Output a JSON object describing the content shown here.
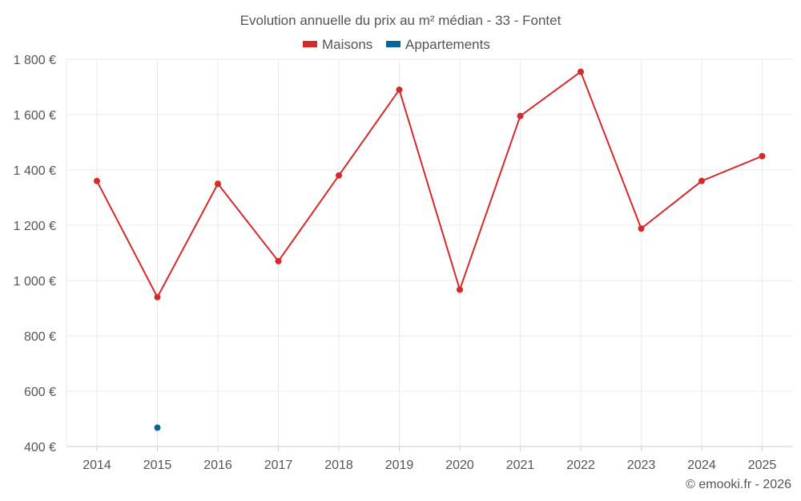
{
  "chart_data": {
    "type": "line",
    "title": "Evolution annuelle du prix au m² médian - 33 - Fontet",
    "x": [
      2014,
      2015,
      2016,
      2017,
      2018,
      2019,
      2020,
      2021,
      2022,
      2023,
      2024,
      2025
    ],
    "x_tick_labels": [
      "2014",
      "2015",
      "2016",
      "2017",
      "2018",
      "2019",
      "2020",
      "2021",
      "2022",
      "2023",
      "2024",
      "2025"
    ],
    "ylim": [
      400,
      1800
    ],
    "y_ticks": [
      400,
      600,
      800,
      1000,
      1200,
      1400,
      1600,
      1800
    ],
    "y_tick_labels": [
      "400 €",
      "600 €",
      "800 €",
      "1 000 €",
      "1 200 €",
      "1 400 €",
      "1 600 €",
      "1 800 €"
    ],
    "grid": true,
    "legend_position": "top-center",
    "series": [
      {
        "name": "Maisons",
        "color": "#d42a2a",
        "values": [
          1360,
          940,
          1350,
          1070,
          1380,
          1690,
          967,
          1595,
          1755,
          1188,
          1360,
          1450
        ]
      },
      {
        "name": "Appartements",
        "color": "#0a6399",
        "values": [
          null,
          468,
          null,
          null,
          null,
          null,
          null,
          null,
          null,
          null,
          null,
          null
        ]
      }
    ]
  },
  "credit": "© emooki.fr - 2026"
}
